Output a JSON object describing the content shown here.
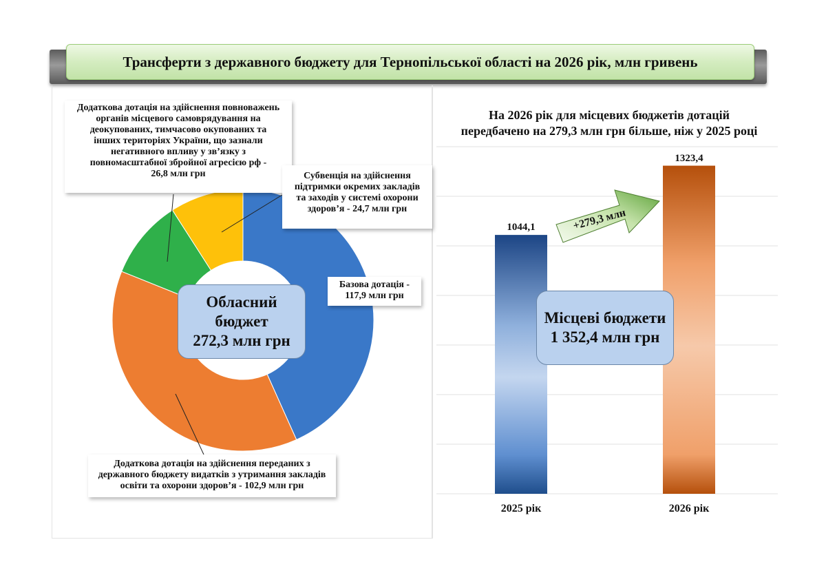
{
  "title": "Трансферти з державного бюджету для Тернопільської області на 2026 рік, млн гривень",
  "chart_data": [
    {
      "type": "pie",
      "variant": "donut",
      "center_label": [
        "Обласний",
        "бюджет",
        "272,3 млн грн"
      ],
      "slices": [
        {
          "label": "Базова дотація - 117,9 млн грн",
          "value": 117.9,
          "color": "#3a78c8"
        },
        {
          "label": "Додаткова дотація на здійснення переданих з державного бюджету видатків з утримання закладів освіти та охорони здоров’я - 102,9 млн грн",
          "value": 102.9,
          "color": "#ed7d31"
        },
        {
          "label": "Додаткова дотація на здійснення повноважень органів місцевого самоврядування на деокупованих, тимчасово окупованих та інших територіях України, що зазнали негативного впливу у зв’язку з повномасштабною збройною агресією рф - 26,8 млн грн",
          "value": 26.8,
          "color": "#2fb04a"
        },
        {
          "label": "Субвенція на здійснення підтримки окремих закладів та заходів у системі охорони здоров’я - 24,7 млн грн",
          "value": 24.7,
          "color": "#fec10a"
        }
      ],
      "callouts": {
        "basic": [
          "Базова дотація -",
          "117,9 млн грн"
        ],
        "education": [
          "Додаткова дотація на здійснення переданих з",
          "державного бюджету видатків з утримання закладів",
          "освіти та охорони здоров’я - 102,9 млн грн"
        ],
        "territories": [
          "Додаткова дотація на здійснення повноважень",
          "органів місцевого самоврядування на",
          "деокупованих, тимчасово окупованих та",
          "інших територіях України, що зазнали",
          "негативного впливу у зв’язку з",
          "повномасштабної збройної агресією рф -",
          "26,8 млн грн"
        ],
        "health": [
          "Субвенція на здійснення",
          "підтримки окремих закладів",
          "та заходів у системі охорони",
          "здоров’я - 24,7 млн грн"
        ]
      }
    },
    {
      "type": "bar",
      "title": [
        "На 2026 рік для місцевих бюджетів дотацій",
        "передбачено на 279,3 млн грн більше, ніж у 2025 році"
      ],
      "categories": [
        "2025 рік",
        "2026 рік"
      ],
      "values": [
        1044.1,
        1323.4
      ],
      "value_labels": [
        "1044,1",
        "1323,4"
      ],
      "colors": [
        "#1f4e8c",
        "#c55a11"
      ],
      "ylim": [
        0,
        1400
      ],
      "grid": true,
      "increase_label": "+279,3 млн",
      "center_label": [
        "Місцеві бюджети",
        "1 352,4 млн грн"
      ]
    }
  ]
}
